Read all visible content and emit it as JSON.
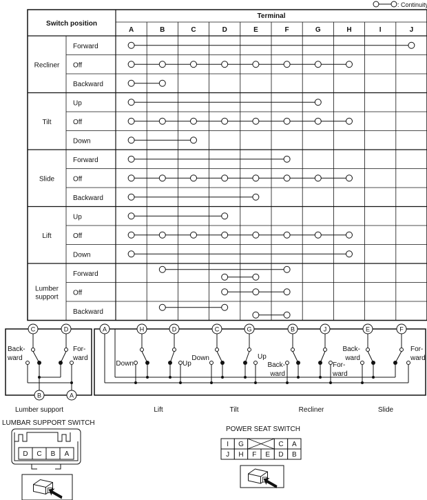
{
  "legend": {
    "label": ": Continuity"
  },
  "table": {
    "header_switch": "Switch position",
    "header_terminal": "Terminal",
    "terminals": [
      "A",
      "B",
      "C",
      "D",
      "E",
      "F",
      "G",
      "H",
      "I",
      "J"
    ],
    "groups": [
      {
        "name": [
          "Recliner"
        ],
        "rows": [
          {
            "position": "Forward",
            "chains": [
              [
                "A",
                "J"
              ]
            ]
          },
          {
            "position": "Off",
            "chains": [
              [
                "A",
                "B",
                "C",
                "D",
                "E",
                "F",
                "G",
                "H"
              ]
            ]
          },
          {
            "position": "Backward",
            "chains": [
              [
                "A",
                "B"
              ]
            ]
          }
        ]
      },
      {
        "name": [
          "Tilt"
        ],
        "rows": [
          {
            "position": "Up",
            "chains": [
              [
                "A",
                "G"
              ]
            ]
          },
          {
            "position": "Off",
            "chains": [
              [
                "A",
                "B",
                "C",
                "D",
                "E",
                "F",
                "G",
                "H"
              ]
            ]
          },
          {
            "position": "Down",
            "chains": [
              [
                "A",
                "C"
              ]
            ]
          }
        ]
      },
      {
        "name": [
          "Slide"
        ],
        "rows": [
          {
            "position": "Forward",
            "chains": [
              [
                "A",
                "F"
              ]
            ]
          },
          {
            "position": "Off",
            "chains": [
              [
                "A",
                "B",
                "C",
                "D",
                "E",
                "F",
                "G",
                "H"
              ]
            ]
          },
          {
            "position": "Backward",
            "chains": [
              [
                "A",
                "E"
              ]
            ]
          }
        ]
      },
      {
        "name": [
          "Lift"
        ],
        "rows": [
          {
            "position": "Up",
            "chains": [
              [
                "A",
                "D"
              ]
            ]
          },
          {
            "position": "Off",
            "chains": [
              [
                "A",
                "B",
                "C",
                "D",
                "E",
                "F",
                "G",
                "H"
              ]
            ]
          },
          {
            "position": "Down",
            "chains": [
              [
                "A",
                "H"
              ]
            ]
          }
        ]
      },
      {
        "name": [
          "Lumber",
          "support"
        ],
        "rows": [
          {
            "position": "Forward",
            "chains": [
              [
                "B",
                "F"
              ],
              [
                "D",
                "E"
              ]
            ]
          },
          {
            "position": "Off",
            "chains": [
              [
                "D",
                "E",
                "F"
              ]
            ]
          },
          {
            "position": "Backward",
            "chains": [
              [
                "B",
                "D"
              ],
              [
                "E",
                "F"
              ]
            ]
          }
        ]
      }
    ]
  },
  "schematic": {
    "lumbar": {
      "terminals_top": [
        "C",
        "D"
      ],
      "terminals_bottom": [
        "B",
        "A"
      ],
      "left_label": [
        "Back-",
        "ward"
      ],
      "right_label": [
        "For-",
        "ward"
      ],
      "caption": "Lumber support"
    },
    "main": {
      "common_terminal": "A",
      "switches": [
        {
          "terminal": "H",
          "label": [
            "Down"
          ]
        },
        {
          "terminal": "D",
          "label": [
            "Up"
          ]
        },
        {
          "terminal": "C",
          "label": [
            "Down"
          ]
        },
        {
          "terminal": "G",
          "label": [
            "Up"
          ]
        },
        {
          "terminal": "B",
          "label": [
            "Back-",
            "ward"
          ]
        },
        {
          "terminal": "J",
          "label": [
            "For-",
            "ward"
          ]
        },
        {
          "terminal": "E",
          "label": [
            "Back-",
            "ward"
          ]
        },
        {
          "terminal": "F",
          "label": [
            "For-",
            "ward"
          ]
        }
      ],
      "captions": [
        "Lift",
        "Tilt",
        "Recliner",
        "Slide"
      ]
    }
  },
  "connectors": {
    "lumbar": {
      "title": "LUMBAR SUPPORT SWITCH",
      "pins": [
        "D",
        "C",
        "B",
        "A"
      ]
    },
    "power_seat": {
      "title": "POWER SEAT SWITCH",
      "top_row": [
        "I",
        "G",
        "",
        "C",
        "A"
      ],
      "bottom_row": [
        "J",
        "H",
        "F",
        "E",
        "D",
        "B"
      ]
    }
  }
}
